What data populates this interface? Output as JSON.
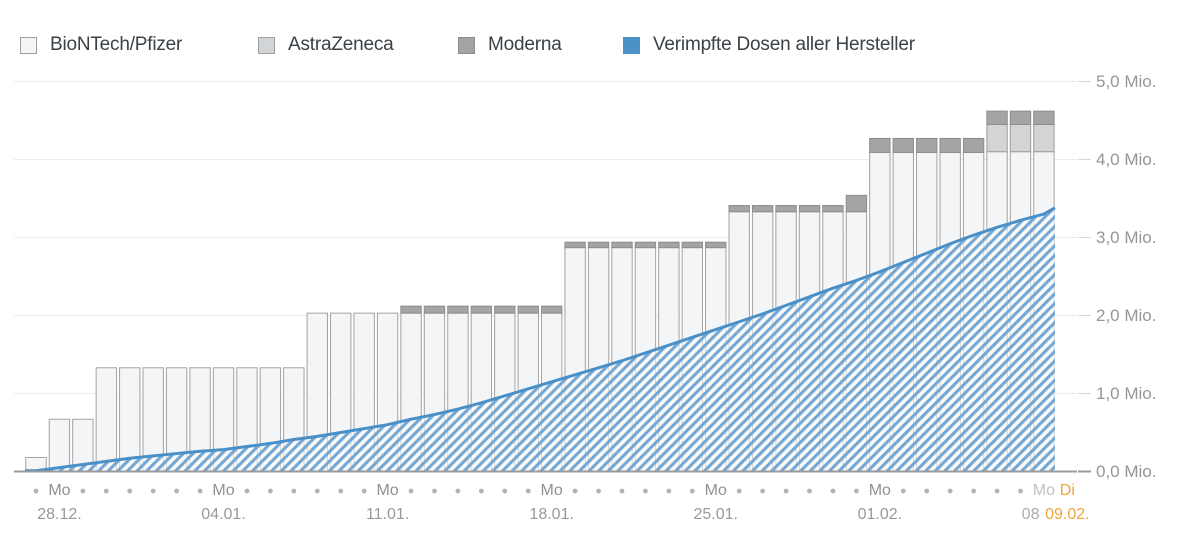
{
  "legend": {
    "items": [
      {
        "id": "biontech",
        "label": "BioNTech/Pfizer",
        "color": "#f4f5f7",
        "border": "#9aa0a4"
      },
      {
        "id": "astrazeneca",
        "label": "AstraZeneca",
        "color": "#d3d4d5",
        "border": "#9aa0a4"
      },
      {
        "id": "moderna",
        "label": "Moderna",
        "color": "#a2a4a6",
        "border": "#8a8e91"
      },
      {
        "id": "verimpft",
        "label": "Verimpfte Dosen aller Hersteller",
        "color": "#4b92c6",
        "border": "#4b92c6"
      }
    ]
  },
  "colors": {
    "grid": "#ececec",
    "tick_dash": "#d6d6d6",
    "axis_line": "#9b9b9b",
    "day_dot": "#b2b2b2",
    "area_line": "#4a90c8",
    "area_stripe": "#74a7d2",
    "highlight": "#f0a43c",
    "segment_borders": [
      "#a2a2a2",
      "#9c9c9c",
      "#8d8d8d"
    ]
  },
  "chart_data": {
    "type": "combo-bar-area",
    "title": "",
    "unit": "Mio.",
    "ylim": [
      0,
      5.0
    ],
    "grid": true,
    "y_ticks": [
      {
        "value": 5,
        "label": "5,0 Mio."
      },
      {
        "value": 4,
        "label": "4,0 Mio."
      },
      {
        "value": 3,
        "label": "3,0 Mio."
      },
      {
        "value": 2,
        "label": "2,0 Mio."
      },
      {
        "value": 1,
        "label": "1,0 Mio."
      },
      {
        "value": 0,
        "label": "0,0 Mio."
      }
    ],
    "x_axis": {
      "start_date": "27.12.",
      "end_date": "09.02.",
      "days": 45,
      "week_labels": [
        {
          "index": 1,
          "day": "Mo",
          "date": "28.12.",
          "style": "normal"
        },
        {
          "index": 8,
          "day": "Mo",
          "date": "04.01.",
          "style": "normal"
        },
        {
          "index": 15,
          "day": "Mo",
          "date": "11.01.",
          "style": "normal"
        },
        {
          "index": 22,
          "day": "Mo",
          "date": "18.01.",
          "style": "normal"
        },
        {
          "index": 29,
          "day": "Mo",
          "date": "25.01.",
          "style": "normal"
        },
        {
          "index": 36,
          "day": "Mo",
          "date": "01.02.",
          "style": "normal"
        },
        {
          "index": 43,
          "day": "Mo",
          "date": "08.02.",
          "style": "faded"
        },
        {
          "index": 44,
          "day": "Di",
          "date": "09.02.",
          "style": "highlight"
        }
      ]
    },
    "bars": {
      "stack_order": [
        "biontech",
        "astrazeneca",
        "moderna"
      ],
      "columns": [
        "date",
        "biontech",
        "astrazeneca",
        "moderna"
      ],
      "rows": [
        [
          "27.12.",
          0.18,
          0,
          0
        ],
        [
          "28.12.",
          0.67,
          0,
          0
        ],
        [
          "29.12.",
          0.67,
          0,
          0
        ],
        [
          "30.12.",
          1.33,
          0,
          0
        ],
        [
          "31.12.",
          1.33,
          0,
          0
        ],
        [
          "01.01.",
          1.33,
          0,
          0
        ],
        [
          "02.01.",
          1.33,
          0,
          0
        ],
        [
          "03.01.",
          1.33,
          0,
          0
        ],
        [
          "04.01.",
          1.33,
          0,
          0
        ],
        [
          "05.01.",
          1.33,
          0,
          0
        ],
        [
          "06.01.",
          1.33,
          0,
          0
        ],
        [
          "07.01.",
          1.33,
          0,
          0
        ],
        [
          "08.01.",
          2.03,
          0,
          0
        ],
        [
          "09.01.",
          2.03,
          0,
          0
        ],
        [
          "10.01.",
          2.03,
          0,
          0
        ],
        [
          "11.01.",
          2.03,
          0,
          0
        ],
        [
          "12.01.",
          2.03,
          0,
          0.09
        ],
        [
          "13.01.",
          2.03,
          0,
          0.09
        ],
        [
          "14.01.",
          2.03,
          0,
          0.09
        ],
        [
          "15.01.",
          2.03,
          0,
          0.09
        ],
        [
          "16.01.",
          2.03,
          0,
          0.09
        ],
        [
          "17.01.",
          2.03,
          0,
          0.09
        ],
        [
          "18.01.",
          2.03,
          0,
          0.09
        ],
        [
          "19.01.",
          2.87,
          0,
          0.07
        ],
        [
          "20.01.",
          2.87,
          0,
          0.07
        ],
        [
          "21.01.",
          2.87,
          0,
          0.07
        ],
        [
          "22.01.",
          2.87,
          0,
          0.07
        ],
        [
          "23.01.",
          2.87,
          0,
          0.07
        ],
        [
          "24.01.",
          2.87,
          0,
          0.07
        ],
        [
          "25.01.",
          2.87,
          0,
          0.07
        ],
        [
          "26.01.",
          3.33,
          0,
          0.08
        ],
        [
          "27.01.",
          3.33,
          0,
          0.08
        ],
        [
          "28.01.",
          3.33,
          0,
          0.08
        ],
        [
          "29.01.",
          3.33,
          0,
          0.08
        ],
        [
          "30.01.",
          3.33,
          0,
          0.08
        ],
        [
          "31.01.",
          3.33,
          0,
          0.21
        ],
        [
          "01.02.",
          4.09,
          0,
          0.18
        ],
        [
          "02.02.",
          4.09,
          0,
          0.18
        ],
        [
          "03.02.",
          4.09,
          0,
          0.18
        ],
        [
          "04.02.",
          4.09,
          0,
          0.18
        ],
        [
          "05.02.",
          4.09,
          0,
          0.18
        ],
        [
          "06.02.",
          4.1,
          0.35,
          0.17
        ],
        [
          "07.02.",
          4.1,
          0.35,
          0.17
        ],
        [
          "08.02.",
          4.1,
          0.35,
          0.17
        ]
      ]
    },
    "area": {
      "name": "Verimpfte Dosen aller Hersteller",
      "start_date": "27.12.",
      "end_date": "09.02.",
      "values": [
        0.01,
        0.05,
        0.09,
        0.13,
        0.17,
        0.2,
        0.23,
        0.26,
        0.28,
        0.32,
        0.36,
        0.41,
        0.45,
        0.5,
        0.55,
        0.6,
        0.67,
        0.73,
        0.8,
        0.88,
        0.97,
        1.06,
        1.15,
        1.24,
        1.33,
        1.42,
        1.52,
        1.62,
        1.72,
        1.82,
        1.92,
        2.02,
        2.13,
        2.24,
        2.35,
        2.45,
        2.56,
        2.68,
        2.8,
        2.92,
        3.03,
        3.13,
        3.22,
        3.3,
        3.38
      ]
    }
  }
}
